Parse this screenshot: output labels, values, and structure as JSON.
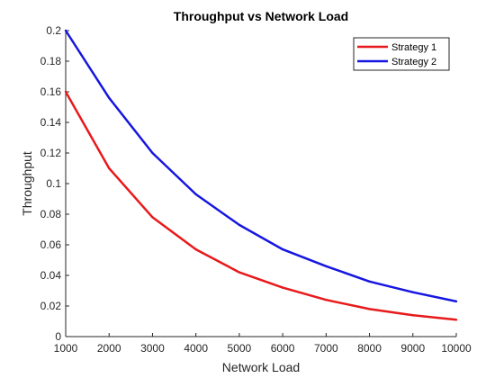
{
  "chart_data": {
    "type": "line",
    "title": "Throughput vs Network Load",
    "xlabel": "Network Load",
    "ylabel": "Throughput",
    "x": [
      1000,
      2000,
      3000,
      4000,
      5000,
      6000,
      7000,
      8000,
      9000,
      10000
    ],
    "xlim": [
      1000,
      10000
    ],
    "ylim": [
      0,
      0.2
    ],
    "xticks": [
      1000,
      2000,
      3000,
      4000,
      5000,
      6000,
      7000,
      8000,
      9000,
      10000
    ],
    "xtick_labels": [
      "1000",
      "2000",
      "3000",
      "4000",
      "5000",
      "6000",
      "7000",
      "8000",
      "9000",
      "10000"
    ],
    "yticks": [
      0,
      0.02,
      0.04,
      0.06,
      0.08,
      0.1,
      0.12,
      0.14,
      0.16,
      0.18,
      0.2
    ],
    "ytick_labels": [
      "0",
      "0.02",
      "0.04",
      "0.06",
      "0.08",
      "0.1",
      "0.12",
      "0.14",
      "0.16",
      "0.18",
      "0.2"
    ],
    "grid": false,
    "legend_position": "top-right",
    "series": [
      {
        "name": "Strategy 1",
        "color": "#e8191a",
        "values": [
          0.16,
          0.11,
          0.078,
          0.057,
          0.042,
          0.032,
          0.024,
          0.018,
          0.014,
          0.011
        ]
      },
      {
        "name": "Strategy 2",
        "color": "#1616e0",
        "values": [
          0.2,
          0.156,
          0.12,
          0.093,
          0.073,
          0.057,
          0.046,
          0.036,
          0.029,
          0.023
        ]
      }
    ]
  }
}
